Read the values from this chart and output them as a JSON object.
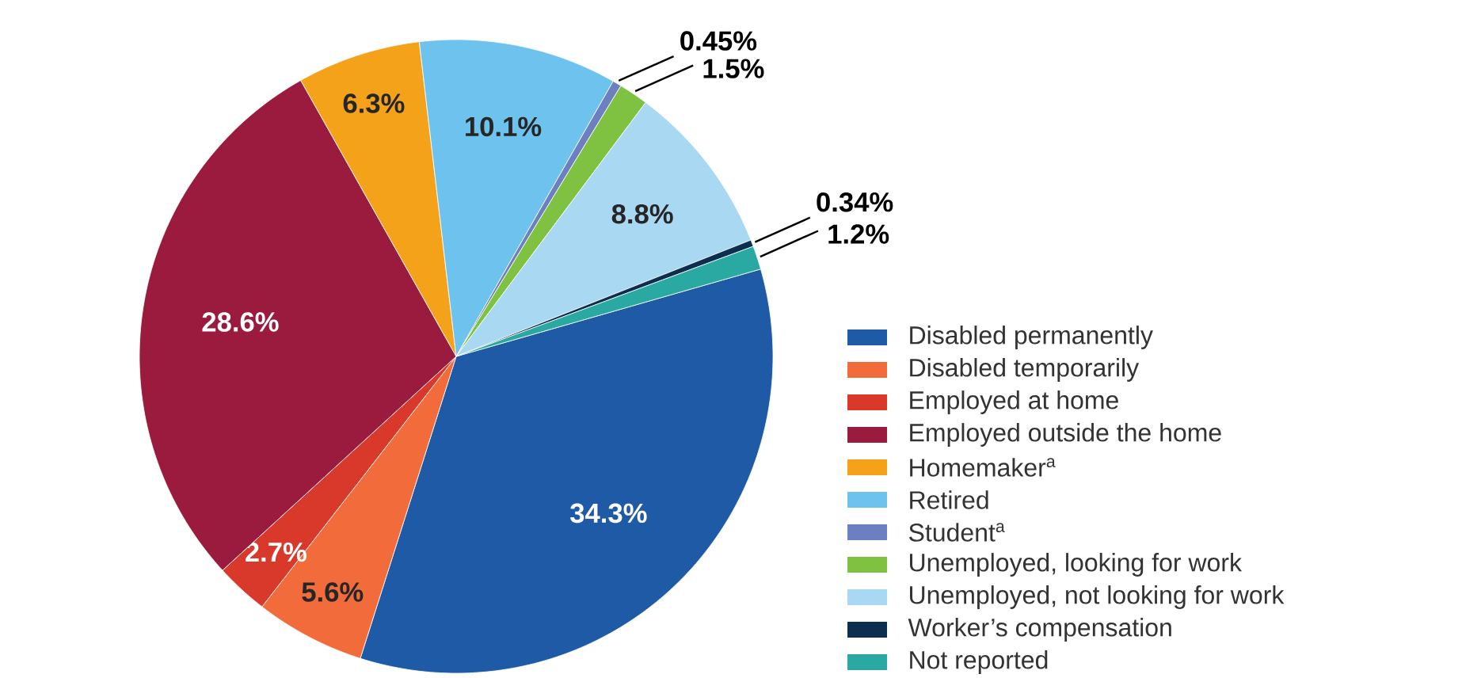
{
  "chart_data": {
    "type": "pie",
    "categories": [
      "Disabled permanently",
      "Disabled temporarily",
      "Employed at home",
      "Employed outside the home",
      "Homemaker$^{a}$",
      "Retired",
      "Student$^{a}$",
      "Unemployed, looking for work",
      "Unemployed, not looking for work",
      "Worker’s compensation",
      "Not reported"
    ],
    "values": [
      34.3,
      5.6,
      2.7,
      28.6,
      6.3,
      10.1,
      0.45,
      1.5,
      8.8,
      0.34,
      1.2
    ],
    "colors": [
      "#1f5aa6",
      "#f26b3a",
      "#d9392b",
      "#9b1b3f",
      "#f5a21b",
      "#6ec3ee",
      "#6c7fc0",
      "#7fc241",
      "#a9d9f2",
      "#0d2f4f",
      "#2aa9a3"
    ],
    "value_labels": [
      "34.3%",
      "5.6%",
      "2.7%",
      "28.6%",
      "6.3%",
      "10.1%",
      "0.45%",
      "1.5%",
      "8.8%",
      "0.34%",
      "1.2%"
    ],
    "legend": "right"
  }
}
